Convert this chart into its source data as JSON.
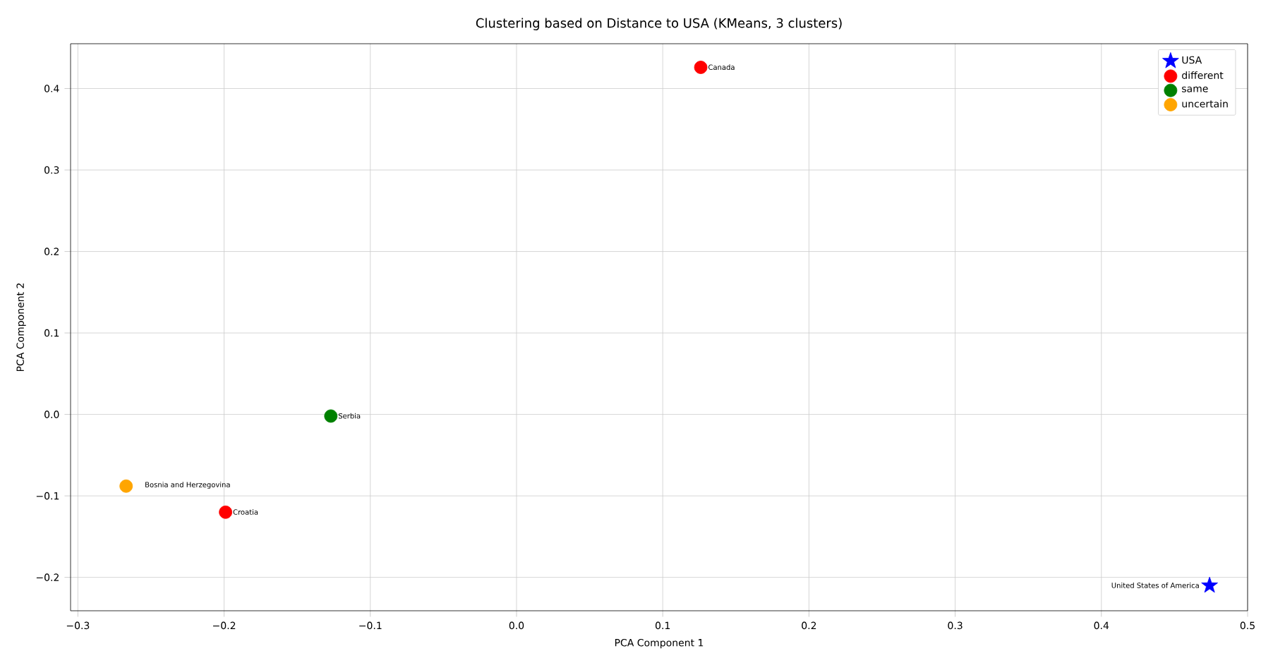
{
  "chart_data": {
    "type": "scatter",
    "title": "Clustering based on Distance to USA (KMeans, 3 clusters)",
    "xlabel": "PCA Component 1",
    "ylabel": "PCA Component 2",
    "xlim": [
      -0.305,
      0.5
    ],
    "ylim": [
      -0.241,
      0.455
    ],
    "xticks": [
      {
        "value": -0.3,
        "label": "−0.3"
      },
      {
        "value": -0.2,
        "label": "−0.2"
      },
      {
        "value": -0.1,
        "label": "−0.1"
      },
      {
        "value": 0.0,
        "label": "0.0"
      },
      0.1,
      0.2,
      0.3,
      0.4,
      0.5
    ],
    "yticks": [
      {
        "value": -0.2,
        "label": "−0.2"
      },
      {
        "value": -0.1,
        "label": "−0.1"
      },
      {
        "value": 0.0,
        "label": "0.0"
      },
      0.1,
      0.2,
      0.3,
      0.4
    ],
    "grid": true,
    "legend": "top right",
    "series": [
      {
        "name": "USA",
        "color": "#0000ff",
        "marker": "star",
        "x": [
          0.474
        ],
        "values": [
          -0.21
        ]
      },
      {
        "name": "different",
        "color": "#ff0000",
        "marker": "circle",
        "x": [
          0.126,
          -0.199
        ],
        "values": [
          0.426,
          -0.12
        ]
      },
      {
        "name": "same",
        "color": "#008000",
        "marker": "circle",
        "x": [
          -0.127
        ],
        "values": [
          -0.002
        ]
      },
      {
        "name": "uncertain",
        "color": "#ffa500",
        "marker": "circle",
        "x": [
          -0.267
        ],
        "values": [
          -0.088
        ]
      }
    ],
    "annotations": [
      {
        "text": "United States of America",
        "x": 0.474,
        "y": -0.21
      },
      {
        "text": "Canada",
        "x": 0.126,
        "y": 0.426
      },
      {
        "text": "Croatia",
        "x": -0.199,
        "y": -0.12
      },
      {
        "text": "Serbia",
        "x": -0.127,
        "y": -0.002
      },
      {
        "text": "Bosnia and Herzegovina",
        "x": -0.267,
        "y": -0.088
      }
    ]
  }
}
